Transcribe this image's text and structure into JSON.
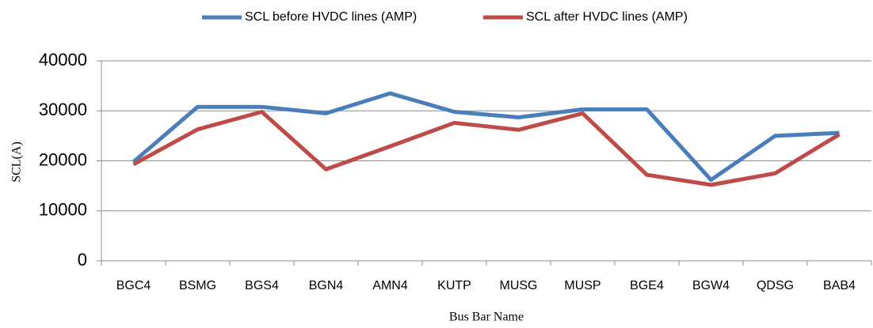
{
  "chart_data": {
    "type": "line",
    "x_label": "Bus Bar Name",
    "y_label": "SCL(A)",
    "categories": [
      "BGC4",
      "BSMG",
      "BGS4",
      "BGN4",
      "AMN4",
      "KUTP",
      "MUSG",
      "MUSP",
      "BGE4",
      "BGW4",
      "QDSG",
      "BAB4"
    ],
    "series": [
      {
        "name": "SCL before HVDC lines (AMP)",
        "color": "#4a7ebb",
        "values": [
          19800,
          30800,
          30800,
          29500,
          33500,
          29800,
          28700,
          30300,
          30300,
          16200,
          25000,
          25600
        ]
      },
      {
        "name": "SCL after HVDC lines (AMP)",
        "color": "#be4b48",
        "values": [
          19300,
          26300,
          29800,
          18300,
          22900,
          27600,
          26200,
          29500,
          17200,
          15200,
          17500,
          25300
        ]
      }
    ],
    "ylim": [
      0,
      40000
    ],
    "yticks": [
      0,
      10000,
      20000,
      30000,
      40000
    ],
    "grid": true,
    "legend": "top"
  }
}
